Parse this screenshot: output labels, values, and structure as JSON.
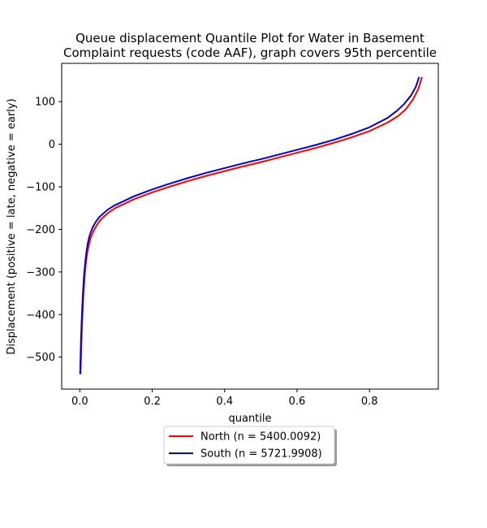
{
  "chart_data": {
    "type": "line",
    "title": "Queue displacement Quantile Plot for Water in Basement\nComplaint  requests (code AAF), graph covers 95th percentile",
    "xlabel": "quantile",
    "ylabel": "Displacement (positive = late, negative = early)",
    "xlim": [
      -0.05,
      0.99
    ],
    "ylim": [
      -575,
      190
    ],
    "xticks": [
      0.0,
      0.2,
      0.4,
      0.6,
      0.8
    ],
    "xtick_labels": [
      "0.0",
      "0.2",
      "0.4",
      "0.6",
      "0.8"
    ],
    "yticks": [
      -500,
      -400,
      -300,
      -200,
      -100,
      0,
      100
    ],
    "ytick_labels": [
      "−500",
      "−400",
      "−300",
      "−200",
      "−100",
      "0",
      "100"
    ],
    "grid": false,
    "legend_position": "below-center",
    "series": [
      {
        "name": "North (n = 5400.0092)",
        "color": "#ff0000",
        "x": [
          0.002,
          0.004,
          0.006,
          0.008,
          0.01,
          0.013,
          0.016,
          0.02,
          0.025,
          0.03,
          0.04,
          0.05,
          0.06,
          0.08,
          0.1,
          0.15,
          0.2,
          0.25,
          0.3,
          0.35,
          0.4,
          0.45,
          0.5,
          0.55,
          0.6,
          0.65,
          0.7,
          0.75,
          0.8,
          0.85,
          0.88,
          0.9,
          0.92,
          0.935,
          0.945
        ],
        "y": [
          -540,
          -480,
          -430,
          -390,
          -355,
          -315,
          -285,
          -258,
          -237,
          -220,
          -200,
          -186,
          -175,
          -160,
          -149,
          -129,
          -113,
          -99,
          -86,
          -74,
          -63,
          -52,
          -42,
          -31,
          -20,
          -9,
          3,
          16,
          31,
          51,
          67,
          82,
          105,
          130,
          158
        ]
      },
      {
        "name": "South (n = 5721.9908)",
        "color": "#0000cc",
        "x": [
          0.001,
          0.003,
          0.005,
          0.007,
          0.009,
          0.012,
          0.015,
          0.018,
          0.022,
          0.027,
          0.035,
          0.045,
          0.055,
          0.075,
          0.095,
          0.15,
          0.2,
          0.25,
          0.3,
          0.35,
          0.4,
          0.45,
          0.5,
          0.55,
          0.6,
          0.65,
          0.7,
          0.75,
          0.8,
          0.85,
          0.875,
          0.895,
          0.915,
          0.928,
          0.937
        ],
        "y": [
          -540,
          -470,
          -420,
          -380,
          -345,
          -305,
          -278,
          -255,
          -233,
          -215,
          -196,
          -181,
          -170,
          -155,
          -144,
          -122,
          -106,
          -92,
          -79,
          -67,
          -56,
          -45,
          -35,
          -24,
          -13,
          -2,
          10,
          24,
          40,
          62,
          78,
          94,
          115,
          135,
          158
        ]
      }
    ]
  }
}
